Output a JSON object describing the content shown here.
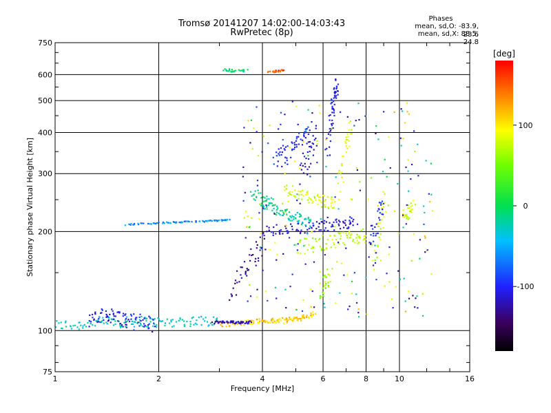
{
  "chart_data": {
    "type": "scatter",
    "title": "Tromsø 20141207 14:02:00-14:03:43",
    "subtitle": "RwPretec (8p)",
    "xlabel": "Frequency [MHz]",
    "ylabel": "Stationary phase Virtual Height [km]",
    "x_scale": "log",
    "y_scale": "log",
    "xlim": [
      1,
      16
    ],
    "ylim": [
      75,
      750
    ],
    "xticks": [
      1,
      2,
      4,
      6,
      8,
      10,
      16
    ],
    "yticks": [
      75,
      100,
      200,
      300,
      400,
      500,
      600,
      750
    ],
    "grid": true,
    "colorbar": {
      "label": "[deg]",
      "range": [
        -180,
        180
      ],
      "ticks": [
        100,
        0,
        -100
      ]
    },
    "stats_header": "Phases",
    "stats": [
      "mean, sd,O: -83.9, 23.6",
      "mean, sd,X:  88.5, 24.8"
    ],
    "series_traces": [
      {
        "x": [
          1.0,
          1.15,
          1.3,
          1.45,
          1.6,
          1.75,
          1.9,
          2.1,
          2.4,
          2.7,
          3.0
        ],
        "y": [
          104,
          104,
          106,
          107,
          106,
          107,
          106,
          106,
          107,
          107,
          108
        ],
        "phase": -30,
        "spread": 4
      },
      {
        "x": [
          1.25,
          1.35,
          1.45,
          1.55,
          1.65,
          1.8,
          1.95
        ],
        "y": [
          107,
          110,
          112,
          109,
          106,
          108,
          104
        ],
        "phase": -105,
        "spread": 6
      },
      {
        "x": [
          3.0,
          3.3,
          3.6,
          3.9,
          4.2,
          4.5,
          4.8,
          5.1,
          5.4,
          5.65
        ],
        "y": [
          105,
          105,
          106,
          107,
          107,
          107,
          108,
          109,
          110,
          113
        ],
        "phase": 110,
        "spread": 2
      },
      {
        "x": [
          2.9,
          3.1,
          3.3,
          3.5,
          3.7
        ],
        "y": [
          106,
          106,
          106,
          106,
          106
        ],
        "phase": -120,
        "spread": 1
      },
      {
        "x": [
          1.6,
          1.9,
          2.15,
          2.4,
          2.7,
          3.0,
          3.2
        ],
        "y": [
          210,
          212,
          213,
          214,
          215,
          216,
          217
        ],
        "phase": -60,
        "spread": 1
      },
      {
        "x": [
          4.0,
          4.5,
          5.0,
          5.5,
          6.0,
          6.5,
          7.0,
          7.5
        ],
        "y": [
          200,
          203,
          205,
          206,
          208,
          210,
          212,
          215
        ],
        "phase": -110,
        "spread": 8
      },
      {
        "x": [
          4.0,
          4.3,
          4.6,
          4.9,
          5.2,
          5.5
        ],
        "y": [
          240,
          235,
          228,
          222,
          218,
          214
        ],
        "phase": -20,
        "spread": 8
      },
      {
        "x": [
          4.6,
          5.0,
          5.4,
          5.8,
          6.2,
          6.6
        ],
        "y": [
          270,
          262,
          255,
          250,
          246,
          242
        ],
        "phase": 80,
        "spread": 10
      },
      {
        "x": [
          5.0,
          5.5,
          6.0,
          6.5,
          7.0,
          7.5,
          8.0
        ],
        "y": [
          180,
          182,
          185,
          188,
          190,
          192,
          195
        ],
        "phase": 70,
        "spread": 10
      },
      {
        "x": [
          4.3,
          4.6,
          4.9,
          5.2,
          5.5
        ],
        "y": [
          320,
          340,
          360,
          380,
          400
        ],
        "phase": -100,
        "spread": 25
      },
      {
        "x": [
          5.2,
          5.5,
          5.8
        ],
        "y": [
          300,
          350,
          400
        ],
        "phase": -115,
        "spread": 25
      },
      {
        "x": [
          6.2,
          6.3,
          6.4,
          6.5,
          6.6
        ],
        "y": [
          350,
          420,
          480,
          530,
          570
        ],
        "phase": -105,
        "spread": 30
      },
      {
        "x": [
          6.7,
          7.0,
          7.3
        ],
        "y": [
          280,
          360,
          430
        ],
        "phase": 85,
        "spread": 25
      },
      {
        "x": [
          3.2,
          3.5,
          3.8,
          4.1
        ],
        "y": [
          130,
          150,
          170,
          190
        ],
        "phase": -130,
        "spread": 12
      },
      {
        "x": [
          8.4,
          8.8,
          9.2
        ],
        "y": [
          170,
          210,
          250
        ],
        "phase": 75,
        "spread": 18
      },
      {
        "x": [
          8.2,
          8.7,
          9.0
        ],
        "y": [
          190,
          220,
          240
        ],
        "phase": -100,
        "spread": 18
      },
      {
        "x": [
          3.1,
          3.3,
          3.6
        ],
        "y": [
          620,
          615,
          620
        ],
        "phase": -10,
        "spread": 6
      },
      {
        "x": [
          4.2,
          4.4,
          4.6
        ],
        "y": [
          610,
          615,
          620
        ],
        "phase": 150,
        "spread": 4
      },
      {
        "x": [
          10.3,
          10.6,
          11.0
        ],
        "y": [
          220,
          230,
          240
        ],
        "phase": 80,
        "spread": 10
      },
      {
        "x": [
          5.9,
          6.1,
          6.3
        ],
        "y": [
          130,
          140,
          150
        ],
        "phase": 60,
        "spread": 8
      },
      {
        "x": [
          3.7,
          4.0,
          4.3
        ],
        "y": [
          260,
          250,
          240
        ],
        "phase": -10,
        "spread": 12
      }
    ],
    "series_scatter": {
      "x_range": [
        3.5,
        12.5
      ],
      "y_range": [
        110,
        500
      ],
      "phase_mix": [
        -100,
        -120,
        80,
        100,
        -20
      ],
      "count": 260
    }
  }
}
